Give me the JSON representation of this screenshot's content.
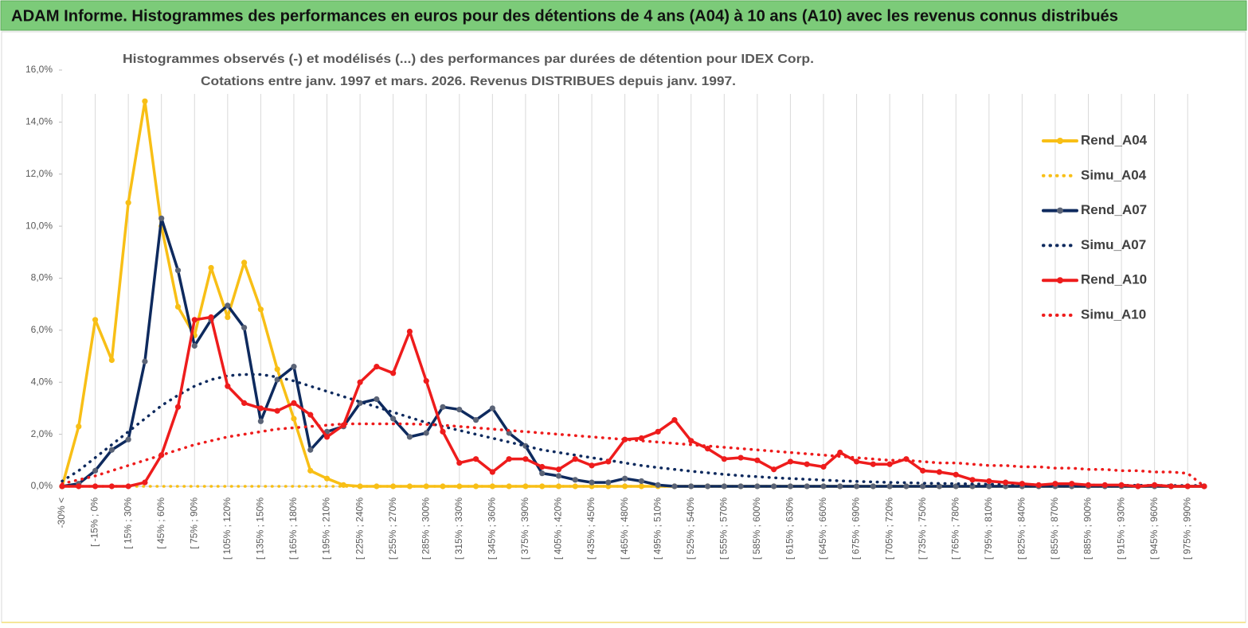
{
  "header": {
    "title": "ADAM Informe. Histogrammes des performances en euros pour des détentions de 4 ans (A04) à 10 ans (A10) avec les revenus connus distribués"
  },
  "chart_data": {
    "type": "line",
    "title": [
      "Histogrammes observés (-) et modélisés (...) des performances par durées de détention pour IDEX Corp.",
      "Cotations entre janv. 1997 et mars. 2026.  Revenus DISTRIBUES depuis janv. 1997."
    ],
    "categories": [
      "-30% <",
      null,
      "[ -15% ; 0%",
      null,
      "[ 15% ; 30%",
      null,
      "[ 45% ; 60%",
      null,
      "[ 75% ; 90%",
      null,
      "[ 105% ; 120%",
      null,
      "[ 135% ; 150%",
      null,
      "[ 165% ; 180%",
      null,
      "[ 195% ; 210%",
      null,
      "[ 225% ; 240%",
      null,
      "[ 255% ; 270%",
      null,
      "[ 285% ; 300%",
      null,
      "[ 315% ; 330%",
      null,
      "[ 345% ; 360%",
      null,
      "[ 375% ; 390%",
      null,
      "[ 405% ; 420%",
      null,
      "[ 435% ; 450%",
      null,
      "[ 465% ; 480%",
      null,
      "[ 495% ; 510%",
      null,
      "[ 525% ; 540%",
      null,
      "[ 555% ; 570%",
      null,
      "[ 585% ; 600%",
      null,
      "[ 615% ; 630%",
      null,
      "[ 645% ; 660%",
      null,
      "[ 675% ; 690%",
      null,
      "[ 705% ; 720%",
      null,
      "[ 735% ; 750%",
      null,
      "[ 765% ; 780%",
      null,
      "[ 795% ; 810%",
      null,
      "[ 825% ; 840%",
      null,
      "[ 855% ; 870%",
      null,
      "[ 885% ; 900%",
      null,
      "[ 915% ; 930%",
      null,
      "[ 945% ; 960%",
      null,
      "[ 975% ; 990%",
      null
    ],
    "ylim": [
      0,
      16
    ],
    "yticks": [
      {
        "value": 0,
        "label": "0,0%"
      },
      {
        "value": 2,
        "label": "2,0%"
      },
      {
        "value": 4,
        "label": "4,0%"
      },
      {
        "value": 6,
        "label": "6,0%"
      },
      {
        "value": 8,
        "label": "8,0%"
      },
      {
        "value": 10,
        "label": "10,0%"
      },
      {
        "value": 12,
        "label": "12,0%"
      },
      {
        "value": 14,
        "label": "14,0%"
      },
      {
        "value": 16,
        "label": "16,0%"
      }
    ],
    "grid": "x",
    "legend": "right",
    "series": [
      {
        "name": "Rend_A04",
        "color": "#f8bf16",
        "dotted": false,
        "marker_color": "#f8bf16",
        "values": [
          0,
          2.3,
          6.4,
          4.85,
          10.9,
          14.8,
          10.0,
          6.9,
          5.8,
          8.4,
          6.5,
          8.6,
          6.8,
          4.5,
          2.6,
          0.6,
          0.3,
          0.05,
          0,
          0,
          0,
          0,
          0,
          0,
          0,
          0,
          0,
          0,
          0,
          0,
          0,
          0,
          0,
          0,
          0,
          0,
          0,
          0,
          0,
          0,
          0,
          0,
          0,
          0,
          0,
          0,
          0,
          0,
          0,
          0,
          0,
          0,
          0,
          0,
          0,
          0,
          0,
          0,
          0,
          0,
          0,
          0,
          0,
          0,
          0,
          0,
          0,
          0,
          0,
          0
        ]
      },
      {
        "name": "Simu_A04",
        "color": "#f8bf16",
        "dotted": true,
        "values": [
          0,
          0,
          0,
          0,
          0,
          0,
          0,
          0,
          0,
          0,
          0,
          0,
          0,
          0,
          0,
          0,
          0,
          0,
          0,
          0,
          0,
          0,
          0,
          0,
          0,
          0,
          0,
          0,
          0,
          0,
          0,
          0,
          0,
          0,
          0,
          0,
          0,
          0,
          0,
          0,
          0,
          0,
          0,
          0,
          0,
          0,
          0,
          0,
          0,
          0,
          0,
          0,
          0,
          0,
          0,
          0,
          0,
          0,
          0,
          0,
          0,
          0,
          0,
          0,
          0,
          0,
          0,
          0,
          0,
          0
        ]
      },
      {
        "name": "Rend_A07",
        "color": "#0e2a5e",
        "dotted": false,
        "marker_color": "#5b6477",
        "values": [
          0,
          0.1,
          0.6,
          1.4,
          1.8,
          4.8,
          10.3,
          8.3,
          5.4,
          6.4,
          6.95,
          6.1,
          2.5,
          4.1,
          4.6,
          1.4,
          2.1,
          2.3,
          3.2,
          3.35,
          2.6,
          1.9,
          2.05,
          3.05,
          2.95,
          2.55,
          3.0,
          2.05,
          1.55,
          0.5,
          0.4,
          0.25,
          0.15,
          0.15,
          0.3,
          0.2,
          0.05,
          0,
          0,
          0,
          0,
          0,
          0,
          0,
          0,
          0,
          0,
          0,
          0,
          0,
          0,
          0,
          0,
          0,
          0,
          0,
          0,
          0,
          0,
          0,
          0,
          0,
          0,
          0,
          0,
          0,
          0,
          0,
          0,
          0
        ]
      },
      {
        "name": "Simu_A07",
        "color": "#0e2a5e",
        "dotted": true,
        "values": [
          0.2,
          0.6,
          1.1,
          1.6,
          2.1,
          2.6,
          3.1,
          3.5,
          3.85,
          4.1,
          4.25,
          4.3,
          4.3,
          4.2,
          4.05,
          3.85,
          3.65,
          3.45,
          3.25,
          3.05,
          2.85,
          2.65,
          2.45,
          2.3,
          2.15,
          2.0,
          1.85,
          1.7,
          1.55,
          1.4,
          1.3,
          1.2,
          1.1,
          1.0,
          0.9,
          0.8,
          0.72,
          0.65,
          0.58,
          0.52,
          0.46,
          0.41,
          0.37,
          0.33,
          0.3,
          0.27,
          0.24,
          0.21,
          0.19,
          0.17,
          0.15,
          0.14,
          0.12,
          0.11,
          0.1,
          0.09,
          0.08,
          0.07,
          0.06,
          0.06,
          0.05,
          0.05,
          0.05,
          0.04,
          0.04,
          0.04,
          0.03,
          0.03,
          0.03,
          0.03
        ]
      },
      {
        "name": "Rend_A10",
        "color": "#ee1c1c",
        "dotted": false,
        "marker_color": "#ee1c1c",
        "values": [
          0,
          0,
          0,
          0,
          0,
          0.15,
          1.2,
          3.05,
          6.4,
          6.5,
          3.85,
          3.2,
          3.0,
          2.9,
          3.2,
          2.75,
          1.9,
          2.35,
          4.0,
          4.6,
          4.35,
          5.95,
          4.05,
          2.1,
          0.9,
          1.05,
          0.55,
          1.05,
          1.05,
          0.75,
          0.65,
          1.05,
          0.8,
          0.95,
          1.8,
          1.85,
          2.1,
          2.55,
          1.75,
          1.45,
          1.05,
          1.1,
          1.0,
          0.65,
          0.95,
          0.85,
          0.75,
          1.3,
          0.95,
          0.85,
          0.85,
          1.05,
          0.6,
          0.55,
          0.45,
          0.25,
          0.2,
          0.15,
          0.1,
          0.05,
          0.1,
          0.1,
          0.05,
          0.05,
          0.05,
          0,
          0.05,
          0,
          0,
          0
        ]
      },
      {
        "name": "Simu_A10",
        "color": "#ee1c1c",
        "dotted": true,
        "values": [
          0.1,
          0.25,
          0.4,
          0.6,
          0.8,
          1.0,
          1.2,
          1.4,
          1.6,
          1.75,
          1.9,
          2.0,
          2.1,
          2.2,
          2.25,
          2.3,
          2.35,
          2.4,
          2.4,
          2.4,
          2.4,
          2.4,
          2.38,
          2.35,
          2.3,
          2.25,
          2.2,
          2.15,
          2.1,
          2.05,
          2.0,
          1.95,
          1.9,
          1.85,
          1.8,
          1.75,
          1.7,
          1.65,
          1.6,
          1.55,
          1.5,
          1.45,
          1.4,
          1.35,
          1.3,
          1.25,
          1.2,
          1.15,
          1.1,
          1.05,
          1.0,
          1.0,
          0.95,
          0.9,
          0.9,
          0.85,
          0.8,
          0.8,
          0.75,
          0.75,
          0.7,
          0.7,
          0.65,
          0.65,
          0.6,
          0.6,
          0.55,
          0.55,
          0.5,
          0
        ]
      }
    ]
  }
}
